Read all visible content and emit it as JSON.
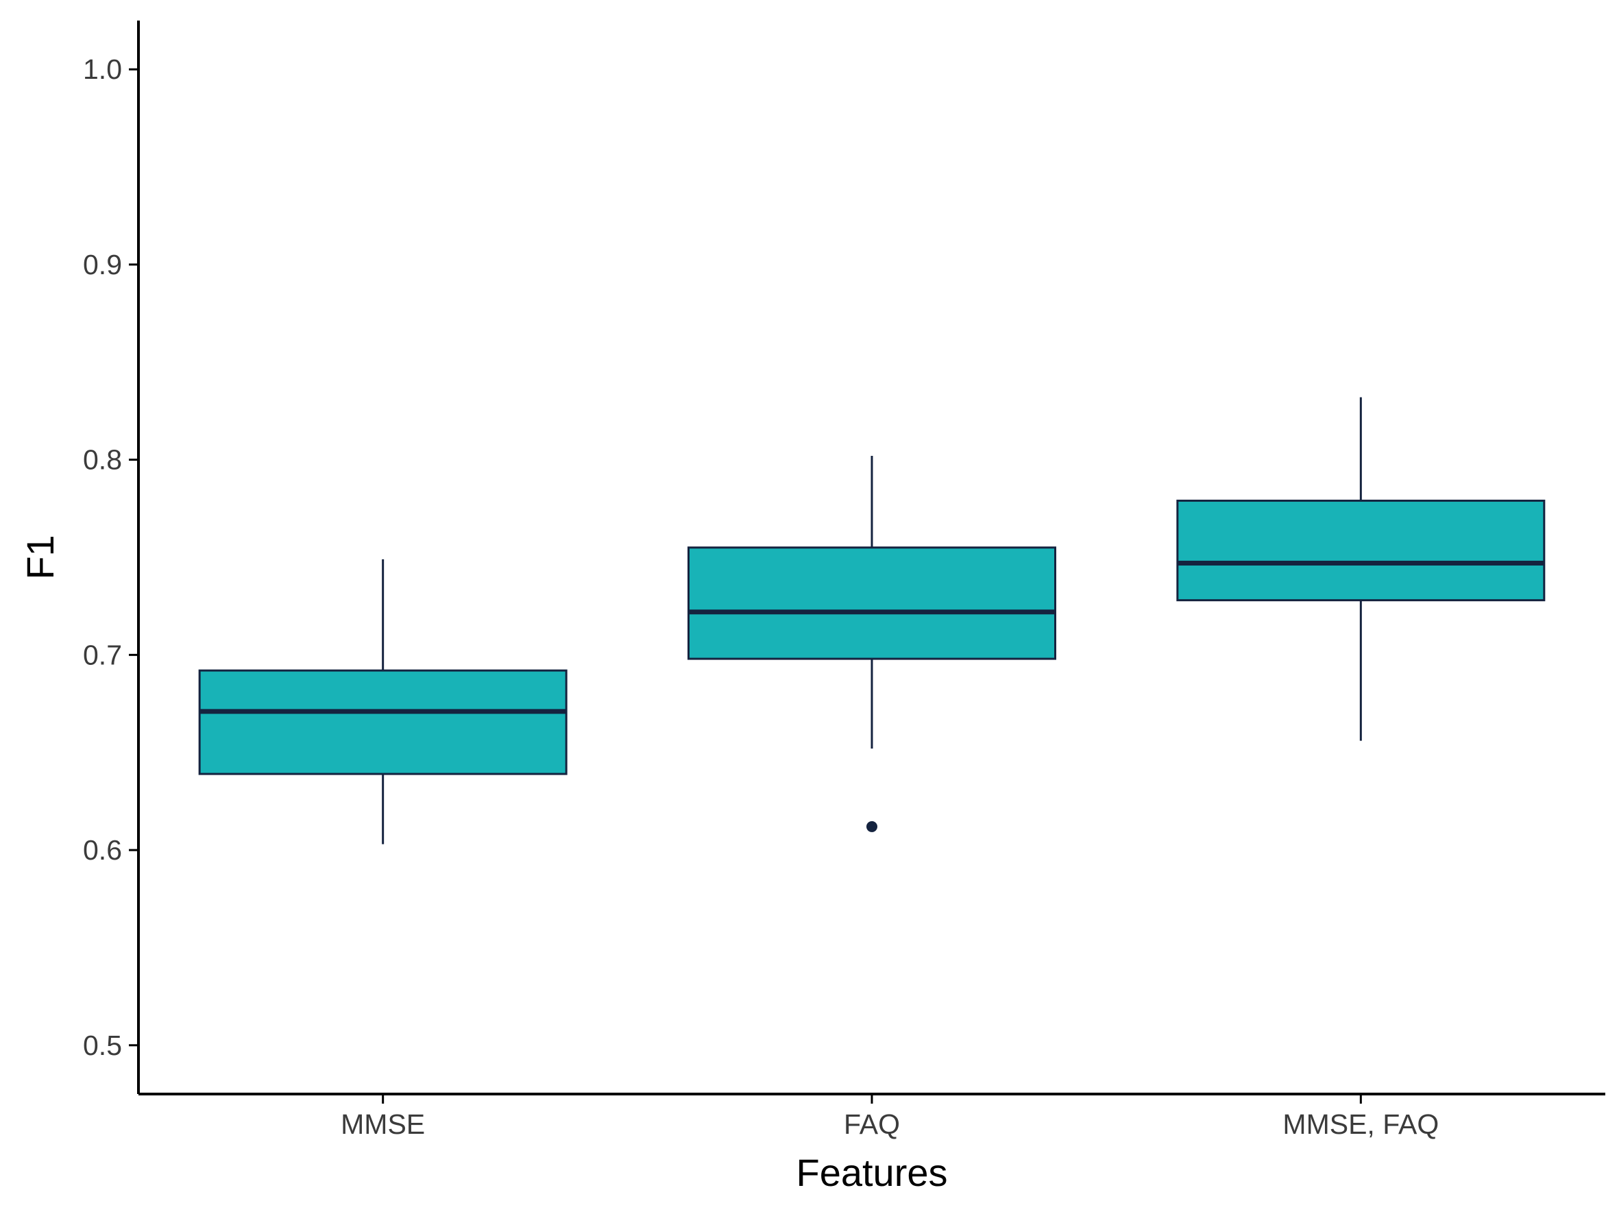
{
  "chart_data": {
    "type": "boxplot",
    "xlabel": "Features",
    "ylabel": "F1",
    "ylim": [
      0.475,
      1.025
    ],
    "yticks": [
      0.5,
      0.6,
      0.7,
      0.8,
      0.9,
      1.0
    ],
    "ytick_labels": [
      "0.5",
      "0.6",
      "0.7",
      "0.8",
      "0.9",
      "1.0"
    ],
    "categories": [
      "MMSE",
      "FAQ",
      "MMSE, FAQ"
    ],
    "boxes": [
      {
        "category": "MMSE",
        "whisker_low": 0.603,
        "q1": 0.639,
        "median": 0.671,
        "q3": 0.692,
        "whisker_high": 0.749,
        "outliers": []
      },
      {
        "category": "FAQ",
        "whisker_low": 0.652,
        "q1": 0.698,
        "median": 0.722,
        "q3": 0.755,
        "whisker_high": 0.802,
        "outliers": [
          0.612
        ]
      },
      {
        "category": "MMSE, FAQ",
        "whisker_low": 0.656,
        "q1": 0.728,
        "median": 0.747,
        "q3": 0.779,
        "whisker_high": 0.832,
        "outliers": []
      }
    ],
    "grid": false,
    "legend": "none",
    "colors": {
      "fill": "#18B3B7",
      "stroke": "#15233F",
      "axis": "#000000"
    }
  }
}
